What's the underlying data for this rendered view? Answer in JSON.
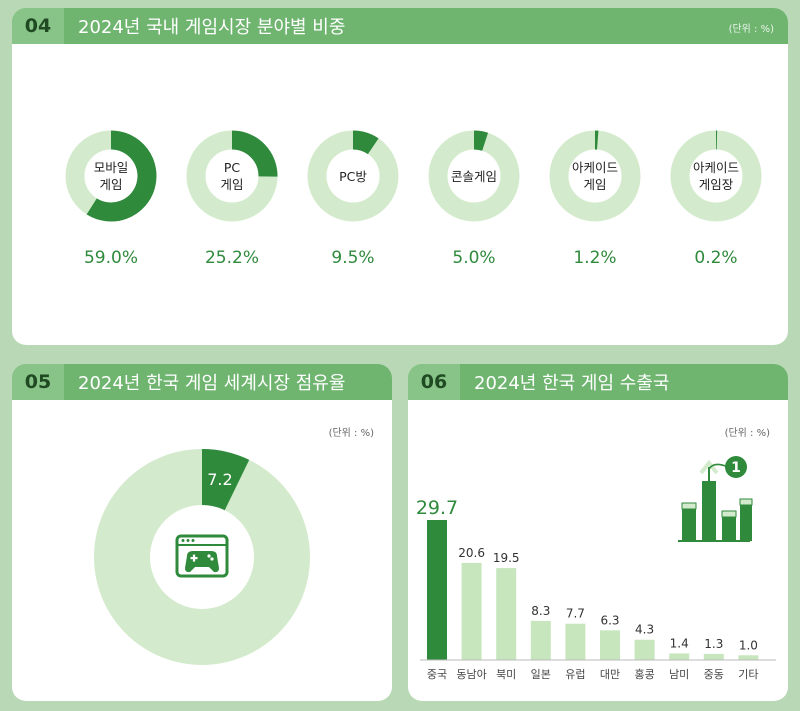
{
  "panel_04": {
    "number": "04",
    "title": "2024년 국내 게임시장 분야별 비중",
    "unit": "(단위 : %)"
  },
  "panel_05": {
    "number": "05",
    "title": "2024년 한국 게임 세계시장 점유율",
    "unit": "(단위 : %)"
  },
  "panel_06": {
    "number": "06",
    "title": "2024년 한국 게임 수출국",
    "unit": "(단위 : %)",
    "rank_badge": "1"
  },
  "colors": {
    "dark_green": "#2f8a3c",
    "light_green": "#d3ebcc",
    "bar_light": "#c7e6bd",
    "header": "#6fb570",
    "background": "#b9d8b6"
  },
  "icons": [
    "game-controller-icon",
    "rising-bar-chart-icon"
  ],
  "chart_data": [
    {
      "type": "pie",
      "title": "2024년 국내 게임시장 분야별 비중",
      "categories": [
        "모바일\n게임",
        "PC\n게임",
        "PC방",
        "콘솔게임",
        "아케이드\n게임",
        "아케이드\n게임장"
      ],
      "values": [
        59.0,
        25.2,
        9.5,
        5.0,
        1.2,
        0.2
      ],
      "value_labels": [
        "59.0%",
        "25.2%",
        "9.5%",
        "5.0%",
        "1.2%",
        "0.2%"
      ],
      "max": 100
    },
    {
      "type": "pie",
      "title": "2024년 한국 게임 세계시장 점유율",
      "values": [
        7.2
      ],
      "value_labels": [
        "7.2"
      ],
      "max": 100
    },
    {
      "type": "bar",
      "title": "2024년 한국 게임 수출국",
      "categories": [
        "중국",
        "동남아",
        "북미",
        "일본",
        "유럽",
        "대만",
        "홍콩",
        "남미",
        "중동",
        "기타"
      ],
      "values": [
        29.7,
        20.6,
        19.5,
        8.3,
        7.7,
        6.3,
        4.3,
        1.4,
        1.3,
        1.0
      ],
      "value_labels": [
        "29.7",
        "20.6",
        "19.5",
        "8.3",
        "7.7",
        "6.3",
        "4.3",
        "1.4",
        "1.3",
        "1.0"
      ],
      "highlight_index": 0
    }
  ]
}
